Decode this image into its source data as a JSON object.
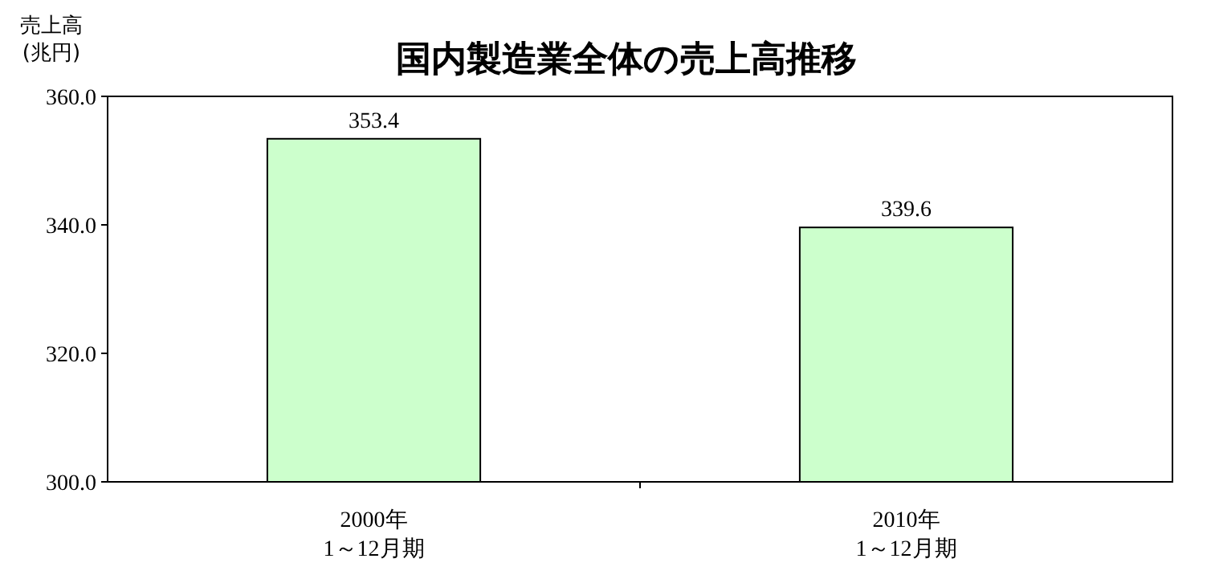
{
  "chart_data": {
    "type": "bar",
    "title": "国内製造業全体の売上高推移",
    "ylabel": "売上高\n(兆円)",
    "categories": [
      "2000年\n1～12月期",
      "2010年\n1～12月期"
    ],
    "values": [
      353.4,
      339.6
    ],
    "color": "#ccffcc",
    "data_labels": true,
    "ylim": [
      300,
      360
    ],
    "yticks": [
      {
        "value": 300,
        "label": "300.0"
      },
      {
        "value": 320,
        "label": "320.0"
      },
      {
        "value": 340,
        "label": "340.0"
      },
      {
        "value": 360,
        "label": "360.0"
      }
    ]
  }
}
